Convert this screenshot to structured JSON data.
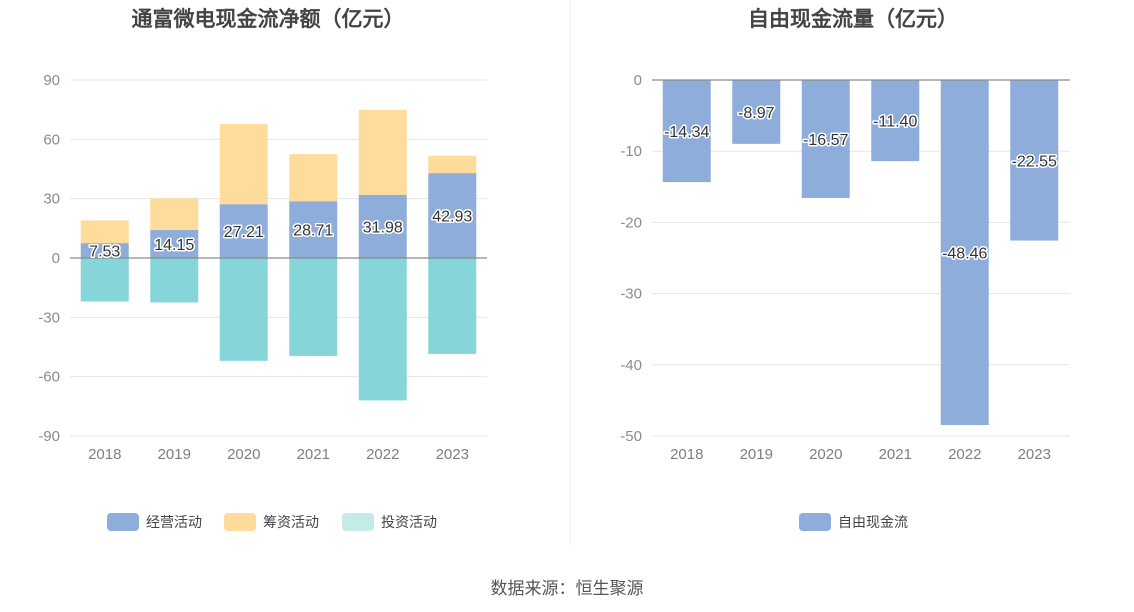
{
  "chart_data": [
    {
      "type": "bar",
      "stacked": true,
      "title": "通富微电现金流净额（亿元）",
      "categories": [
        "2018",
        "2019",
        "2020",
        "2021",
        "2022",
        "2023"
      ],
      "ylim": [
        -90,
        90
      ],
      "yticks": [
        90,
        60,
        30,
        0,
        -30,
        -60,
        -90
      ],
      "series": [
        {
          "name": "经营活动",
          "color": "#8eaddb",
          "values": [
            7.53,
            14.15,
            27.21,
            28.71,
            31.98,
            42.93
          ],
          "labels": [
            "7.53",
            "14.15",
            "27.21",
            "28.71",
            "31.98",
            "42.93"
          ]
        },
        {
          "name": "筹资活动",
          "color": "#ffdb9c",
          "values": [
            11.5,
            16.0,
            40.5,
            23.8,
            42.9,
            8.8
          ]
        },
        {
          "name": "投资活动",
          "color": "#86d5d9",
          "legend_color": "#c4eaea",
          "values": [
            -22.0,
            -22.5,
            -52.0,
            -49.5,
            -72.0,
            -48.5
          ]
        }
      ],
      "legend_position": "bottom"
    },
    {
      "type": "bar",
      "title": "自由现金流量（亿元）",
      "categories": [
        "2018",
        "2019",
        "2020",
        "2021",
        "2022",
        "2023"
      ],
      "ylim": [
        -50,
        0
      ],
      "yticks": [
        0,
        -10,
        -20,
        -30,
        -40,
        -50
      ],
      "series": [
        {
          "name": "自由现金流",
          "color": "#8eaddb",
          "values": [
            -14.34,
            -8.97,
            -16.57,
            -11.4,
            -48.46,
            -22.55
          ],
          "labels": [
            "-14.34",
            "-8.97",
            "-16.57",
            "-11.40",
            "-48.46",
            "-22.55"
          ]
        }
      ],
      "legend_position": "bottom"
    }
  ],
  "source": "数据来源：恒生聚源"
}
